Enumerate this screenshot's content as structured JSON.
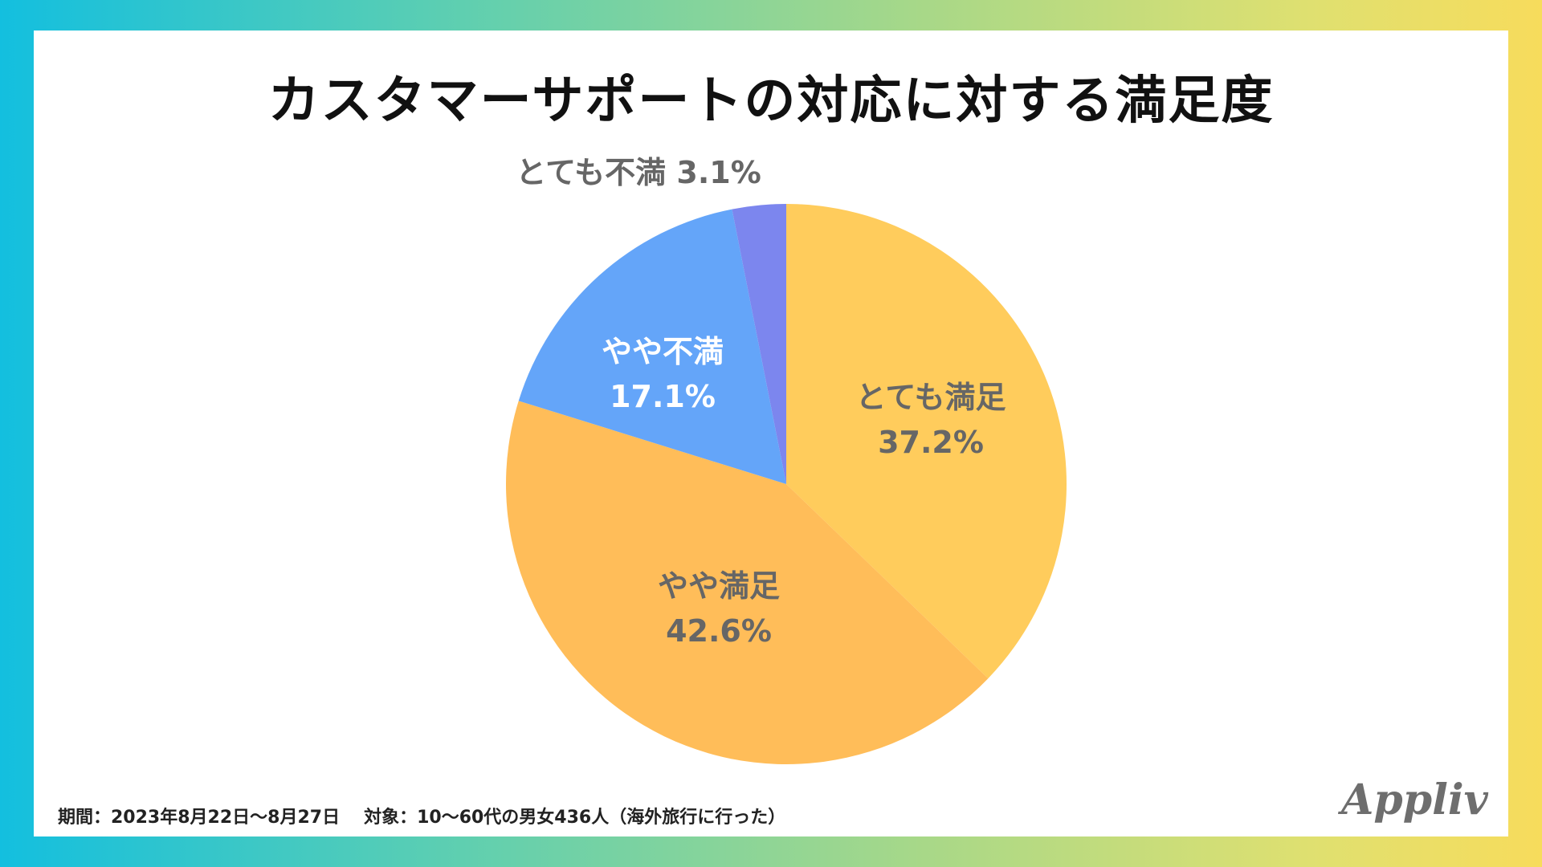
{
  "chart_data": {
    "type": "pie",
    "title": "カスタマーサポートの対応に対する満足度",
    "slices": [
      {
        "label": "とても満足",
        "value": 37.2,
        "value_text": "37.2%",
        "color": "#ffcc5c",
        "label_color": "#666666"
      },
      {
        "label": "やや満足",
        "value": 42.6,
        "value_text": "42.6%",
        "color": "#ffbd59",
        "label_color": "#666666"
      },
      {
        "label": "やや不満",
        "value": 17.1,
        "value_text": "17.1%",
        "color": "#64a5f9",
        "label_color": "#ffffff"
      },
      {
        "label": "とても不満",
        "value": 3.1,
        "value_text": "3.1%",
        "color": "#7c86ee",
        "label_color": "#666666"
      }
    ],
    "start": "top",
    "direction": "clockwise"
  },
  "footnote": {
    "period": "期間：2023年8月22日〜8月27日",
    "target": "対象：10〜60代の男女436人（海外旅行に行った）"
  },
  "brand": {
    "logo_text": "Appliv"
  }
}
